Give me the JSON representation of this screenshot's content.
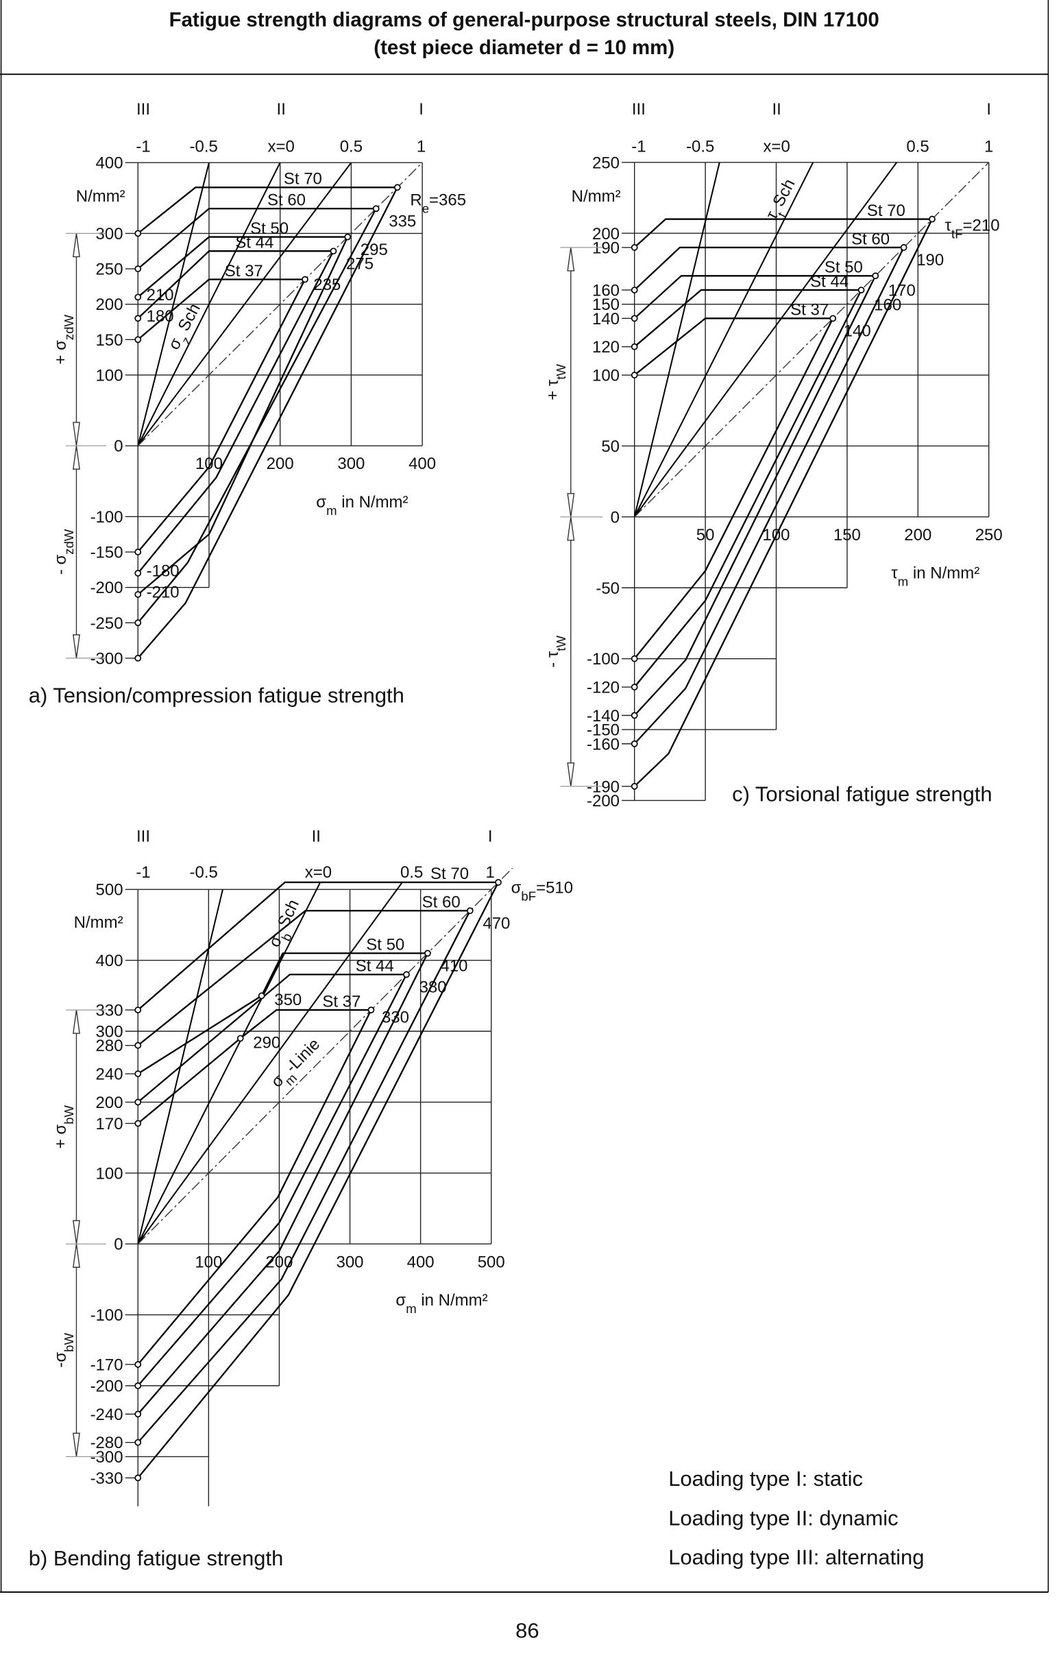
{
  "page": {
    "title_line1": "Fatigue strength diagrams of general-purpose structural steels, DIN 17100",
    "title_line2": "(test piece diameter d = 10 mm)",
    "page_number": "86"
  },
  "legend": {
    "line1": "Loading type I: static",
    "line2": "Loading type II: dynamic",
    "line3": "Loading type III: alternating"
  },
  "colors": {
    "ink": "#000000",
    "background": "#ffffff"
  },
  "chart_data": [
    {
      "type": "line",
      "caption": "a) Tension/compression fatigue strength",
      "load_types": [
        "III",
        "II",
        "I"
      ],
      "ratio_labels": [
        "-1",
        "-0.5",
        "x=0",
        "0.5",
        "1"
      ],
      "unit": "N/mm²",
      "xlabel": {
        "sym": "σ",
        "sub": "m",
        "rest": " in N/mm²"
      },
      "ylabel_pos": {
        "sym": "+ σ",
        "sub": "zdW"
      },
      "ylabel_neg": {
        "sym": "- σ",
        "sub": "zdW"
      },
      "sch_label": {
        "sym": "σ",
        "sub": "z",
        "rest": " Sch"
      },
      "xticks": [
        "100",
        "200",
        "300",
        "400"
      ],
      "yticks": [
        "400",
        "300",
        "250",
        "200",
        "150",
        "100",
        "0",
        "-100",
        "-150",
        "-200",
        "-250",
        "-300"
      ],
      "xlim": [
        0,
        400
      ],
      "ylim": [
        -300,
        400
      ],
      "series": [
        {
          "name": "St 37",
          "sigma_W": 150,
          "yield": 235,
          "yield_label": {
            "main": "235",
            "sub": "",
            "rest": ""
          },
          "upper": [
            [
              0,
              150
            ],
            [
              100,
              235
            ],
            [
              235,
              235
            ]
          ],
          "lower": [
            [
              0,
              -150
            ],
            [
              100,
              -30
            ],
            [
              235,
              235
            ]
          ]
        },
        {
          "name": "St 44",
          "sigma_W": 180,
          "yield": 275,
          "yield_label": {
            "main": "275",
            "sub": "",
            "rest": ""
          },
          "upper": [
            [
              0,
              180
            ],
            [
              100,
              275
            ],
            [
              275,
              275
            ]
          ],
          "lower": [
            [
              0,
              -180
            ],
            [
              110,
              -45
            ],
            [
              275,
              275
            ]
          ]
        },
        {
          "name": "St 50",
          "sigma_W": 210,
          "yield": 295,
          "yield_label": {
            "main": "295",
            "sub": "",
            "rest": ""
          },
          "upper": [
            [
              0,
              210
            ],
            [
              100,
              295
            ],
            [
              295,
              295
            ]
          ],
          "lower": [
            [
              0,
              -210
            ],
            [
              100,
              -125
            ],
            [
              295,
              295
            ]
          ]
        },
        {
          "name": "St 60",
          "sigma_W": 250,
          "yield": 335,
          "yield_label": {
            "main": "335",
            "sub": "",
            "rest": ""
          },
          "upper": [
            [
              0,
              250
            ],
            [
              100,
              335
            ],
            [
              335,
              335
            ]
          ],
          "lower": [
            [
              0,
              -250
            ],
            [
              70,
              -165
            ],
            [
              335,
              335
            ]
          ]
        },
        {
          "name": "St 70",
          "sigma_W": 300,
          "yield": 365,
          "yield_label": {
            "main": "R",
            "sub": "e",
            "rest": "=365"
          },
          "upper": [
            [
              0,
              300
            ],
            [
              81,
              365
            ],
            [
              365,
              365
            ]
          ],
          "lower": [
            [
              0,
              -300
            ],
            [
              67,
              -222
            ],
            [
              365,
              365
            ]
          ]
        }
      ],
      "annotations": [
        {
          "point": [
            0,
            210
          ],
          "label": "210"
        },
        {
          "point": [
            0,
            180
          ],
          "label": "180"
        },
        {
          "point": [
            0,
            -180
          ],
          "label": "-180"
        },
        {
          "point": [
            0,
            -210
          ],
          "label": "-210"
        }
      ]
    },
    {
      "type": "line",
      "caption": "b) Bending fatigue strength",
      "load_types": [
        "III",
        "II",
        "I"
      ],
      "ratio_labels": [
        "-1",
        "-0.5",
        "x=0",
        "0.5",
        "1"
      ],
      "unit": "N/mm²",
      "xlabel": {
        "sym": "σ",
        "sub": "m",
        "rest": " in N/mm²"
      },
      "ylabel_pos": {
        "sym": "+ σ",
        "sub": "bW"
      },
      "ylabel_neg": {
        "sym": "-σ",
        "sub": "bW"
      },
      "sch_label": {
        "sym": "σ",
        "sub": "b",
        "rest": " Sch"
      },
      "line_label": {
        "sym": "σ",
        "sub": "m",
        "rest": "-Linie"
      },
      "xticks": [
        "100",
        "200",
        "300",
        "400",
        "500"
      ],
      "yticks": [
        "500",
        "400",
        "330",
        "300",
        "280",
        "240",
        "200",
        "170",
        "100",
        "0",
        "-100",
        "-170",
        "-200",
        "-240",
        "-280",
        "-300",
        "-330"
      ],
      "xlim": [
        0,
        500
      ],
      "ylim": [
        -330,
        500
      ],
      "series": [
        {
          "name": "St 37",
          "sigma_W": 170,
          "yield": 330,
          "yield_label": {
            "main": "330",
            "sub": "",
            "rest": ""
          },
          "upper": [
            [
              0,
              170
            ],
            [
              145,
              290
            ],
            [
              196,
              330
            ],
            [
              330,
              330
            ]
          ],
          "lower": [
            [
              0,
              -170
            ],
            [
              198,
              66
            ],
            [
              330,
              330
            ]
          ]
        },
        {
          "name": "St 44",
          "sigma_W": 200,
          "yield": 380,
          "yield_label": {
            "main": "380",
            "sub": "",
            "rest": ""
          },
          "upper": [
            [
              0,
              200
            ],
            [
              215,
              380
            ],
            [
              380,
              380
            ]
          ],
          "lower": [
            [
              0,
              -200
            ],
            [
              200,
              30
            ],
            [
              380,
              380
            ]
          ]
        },
        {
          "name": "St 50",
          "sigma_W": 240,
          "yield": 410,
          "yield_label": {
            "main": "410",
            "sub": "",
            "rest": ""
          },
          "upper": [
            [
              0,
              240
            ],
            [
              175,
              350
            ],
            [
              205,
              410
            ],
            [
              410,
              410
            ]
          ],
          "lower": [
            [
              0,
              -240
            ],
            [
              200,
              -10
            ],
            [
              410,
              410
            ]
          ]
        },
        {
          "name": "St 60",
          "sigma_W": 280,
          "yield": 470,
          "yield_label": {
            "main": "470",
            "sub": "",
            "rest": ""
          },
          "upper": [
            [
              0,
              280
            ],
            [
              237,
              470
            ],
            [
              470,
              470
            ]
          ],
          "lower": [
            [
              0,
              -280
            ],
            [
              203,
              -50
            ],
            [
              470,
              470
            ]
          ]
        },
        {
          "name": "St 70",
          "sigma_W": 330,
          "yield": 510,
          "yield_label": {
            "main": "σ",
            "sub": "bF",
            "rest": "=510"
          },
          "upper": [
            [
              0,
              330
            ],
            [
              208,
              510
            ],
            [
              510,
              510
            ]
          ],
          "lower": [
            [
              0,
              -330
            ],
            [
              213,
              -72
            ],
            [
              510,
              510
            ]
          ]
        }
      ],
      "annotations": [
        {
          "point": [
            175,
            350
          ],
          "label": "350"
        },
        {
          "point": [
            145,
            290
          ],
          "label": "290"
        }
      ]
    },
    {
      "type": "line",
      "caption": "c) Torsional fatigue strength",
      "load_types": [
        "III",
        "II",
        "I"
      ],
      "ratio_labels": [
        "-1",
        "-0.5",
        "x=0",
        "0.5",
        "1"
      ],
      "unit": "N/mm²",
      "xlabel": {
        "sym": "τ",
        "sub": "m",
        "rest": " in N/mm²"
      },
      "ylabel_pos": {
        "sym": "+ τ",
        "sub": "tW"
      },
      "ylabel_neg": {
        "sym": "- τ",
        "sub": "tW"
      },
      "sch_label": {
        "sym": "τ",
        "sub": "t",
        "rest": " Sch"
      },
      "xticks": [
        "50",
        "100",
        "150",
        "200",
        "250"
      ],
      "yticks": [
        "250",
        "200",
        "190",
        "160",
        "150",
        "140",
        "120",
        "100",
        "50",
        "0",
        "-50",
        "-100",
        "-120",
        "-140",
        "-150",
        "-160",
        "-190",
        "-200"
      ],
      "xlim": [
        0,
        250
      ],
      "ylim": [
        -200,
        250
      ],
      "series": [
        {
          "name": "St 37",
          "sigma_W": 100,
          "yield": 140,
          "yield_label": {
            "main": "140",
            "sub": "",
            "rest": ""
          },
          "upper": [
            [
              0,
              100
            ],
            [
              50,
              140
            ],
            [
              140,
              140
            ]
          ],
          "lower": [
            [
              0,
              -100
            ],
            [
              50,
              -38
            ],
            [
              140,
              140
            ]
          ]
        },
        {
          "name": "St 44",
          "sigma_W": 120,
          "yield": 160,
          "yield_label": {
            "main": "160",
            "sub": "",
            "rest": ""
          },
          "upper": [
            [
              0,
              120
            ],
            [
              47,
              160
            ],
            [
              160,
              160
            ]
          ],
          "lower": [
            [
              0,
              -120
            ],
            [
              50,
              -59
            ],
            [
              160,
              160
            ]
          ]
        },
        {
          "name": "St 50",
          "sigma_W": 140,
          "yield": 170,
          "yield_label": {
            "main": "170",
            "sub": "",
            "rest": ""
          },
          "upper": [
            [
              0,
              140
            ],
            [
              33,
              170
            ],
            [
              170,
              170
            ]
          ],
          "lower": [
            [
              0,
              -140
            ],
            [
              36,
              -101
            ],
            [
              170,
              170
            ]
          ]
        },
        {
          "name": "St 60",
          "sigma_W": 160,
          "yield": 190,
          "yield_label": {
            "main": "190",
            "sub": "",
            "rest": ""
          },
          "upper": [
            [
              0,
              160
            ],
            [
              32,
              190
            ],
            [
              190,
              190
            ]
          ],
          "lower": [
            [
              0,
              -160
            ],
            [
              36,
              -121
            ],
            [
              190,
              190
            ]
          ]
        },
        {
          "name": "St 70",
          "sigma_W": 190,
          "yield": 210,
          "yield_label": {
            "main": "τ",
            "sub": "tF",
            "rest": "=210"
          },
          "upper": [
            [
              0,
              190
            ],
            [
              22,
              210
            ],
            [
              210,
              210
            ]
          ],
          "lower": [
            [
              0,
              -190
            ],
            [
              24,
              -167
            ],
            [
              210,
              210
            ]
          ]
        }
      ],
      "annotations": []
    }
  ]
}
